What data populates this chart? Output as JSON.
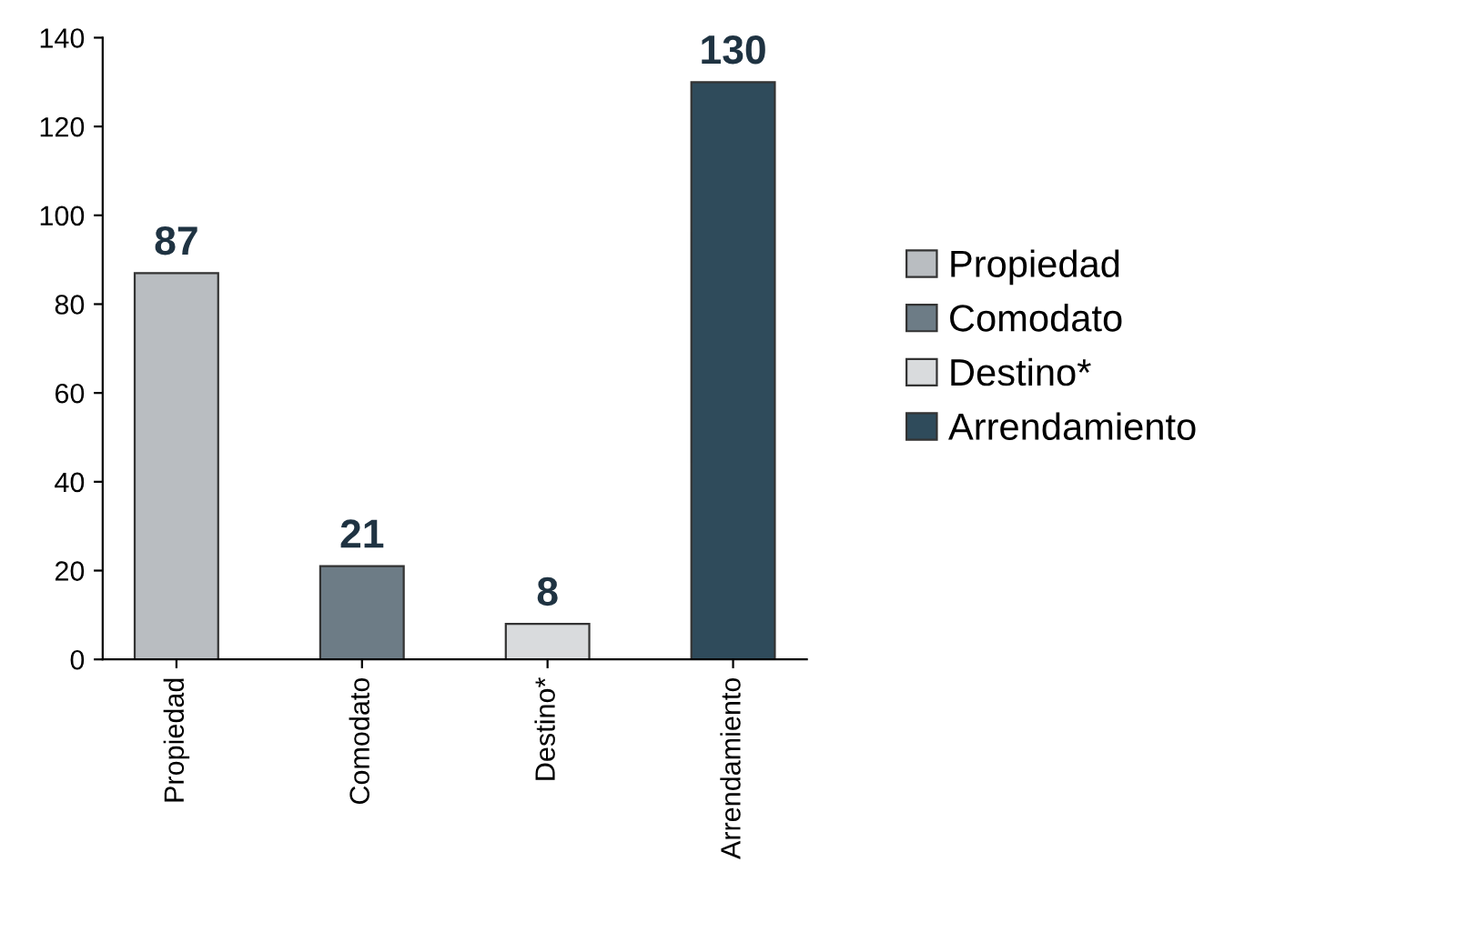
{
  "chart_data": {
    "type": "bar",
    "categories": [
      "Propiedad",
      "Comodato",
      "Destino*",
      "Arrendamiento"
    ],
    "series": [
      {
        "name": "Propiedad",
        "color": "#b9bdc1",
        "values": [
          87,
          null,
          null,
          null
        ]
      },
      {
        "name": "Comodato",
        "color": "#6d7c86",
        "values": [
          null,
          21,
          null,
          null
        ]
      },
      {
        "name": "Destino*",
        "color": "#d9dbdd",
        "values": [
          null,
          null,
          8,
          null
        ]
      },
      {
        "name": "Arrendamiento",
        "color": "#2f4b5b",
        "values": [
          null,
          null,
          null,
          130
        ]
      }
    ],
    "ylim": [
      0,
      140
    ],
    "yticks": [
      0,
      20,
      40,
      60,
      80,
      100,
      120,
      140
    ],
    "data_labels": true,
    "legend": "right",
    "grid": false
  }
}
